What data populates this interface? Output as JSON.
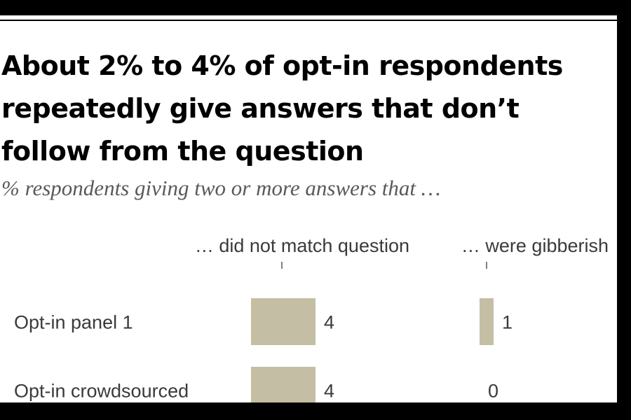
{
  "chart_data": {
    "type": "bar",
    "title": "About 2% to 4% of opt-in respondents repeatedly give answers that don’t follow from the question",
    "subtitle": "% respondents giving two or more answers that …",
    "categories": [
      "Opt-in panel 1",
      "Opt-in crowdsourced"
    ],
    "series": [
      {
        "name": "… did not match question",
        "values": [
          4,
          4
        ]
      },
      {
        "name": "… were gibberish",
        "values": [
          1,
          0
        ]
      }
    ],
    "xlabel": "",
    "ylabel": "",
    "grid": false,
    "legend": "column headers",
    "colors": {
      "bar": "#c4bfa4",
      "text": "#3a3a3a",
      "subtitle": "#58595b"
    }
  }
}
